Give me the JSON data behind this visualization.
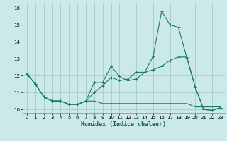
{
  "bg_color": "#cce9e9",
  "grid_color": "#aacfcf",
  "line_color": "#1a7a6a",
  "xlabel": "Humidex (Indice chaleur)",
  "xlim": [
    -0.5,
    23.5
  ],
  "ylim": [
    9.8,
    16.3
  ],
  "yticks": [
    10,
    11,
    12,
    13,
    14,
    15,
    16
  ],
  "xticks": [
    0,
    1,
    2,
    3,
    4,
    5,
    6,
    7,
    8,
    9,
    10,
    11,
    12,
    13,
    14,
    15,
    16,
    17,
    18,
    19,
    20,
    21,
    22,
    23
  ],
  "line1_x": [
    0,
    1,
    2,
    3,
    4,
    5,
    6,
    7,
    8,
    9,
    10,
    11,
    12,
    13,
    14,
    15,
    16,
    17,
    18,
    19,
    20,
    21,
    22,
    23
  ],
  "line1_y": [
    12.1,
    11.5,
    10.75,
    10.5,
    10.5,
    10.3,
    10.3,
    10.5,
    11.6,
    11.6,
    12.55,
    11.95,
    11.7,
    11.8,
    12.2,
    13.15,
    15.8,
    15.0,
    14.85,
    13.05,
    11.3,
    10.0,
    9.95,
    10.1
  ],
  "line2_x": [
    0,
    1,
    2,
    3,
    4,
    5,
    6,
    7,
    8,
    9,
    10,
    11,
    12,
    13,
    14,
    15,
    16,
    17,
    18,
    19,
    20,
    21,
    22,
    23
  ],
  "line2_y": [
    12.1,
    11.5,
    10.75,
    10.5,
    10.5,
    10.3,
    10.3,
    10.5,
    11.0,
    11.4,
    11.9,
    11.7,
    11.8,
    12.2,
    12.2,
    12.35,
    12.55,
    12.9,
    13.1,
    13.1,
    11.3,
    10.0,
    9.95,
    10.1
  ],
  "line3_x": [
    0,
    1,
    2,
    3,
    4,
    5,
    6,
    7,
    8,
    9,
    10,
    11,
    12,
    13,
    14,
    15,
    16,
    17,
    18,
    19,
    20,
    21,
    22,
    23
  ],
  "line3_y": [
    12.1,
    11.5,
    10.75,
    10.5,
    10.5,
    10.3,
    10.3,
    10.5,
    10.5,
    10.35,
    10.35,
    10.35,
    10.35,
    10.35,
    10.35,
    10.35,
    10.35,
    10.35,
    10.35,
    10.35,
    10.15,
    10.15,
    10.15,
    10.15
  ]
}
